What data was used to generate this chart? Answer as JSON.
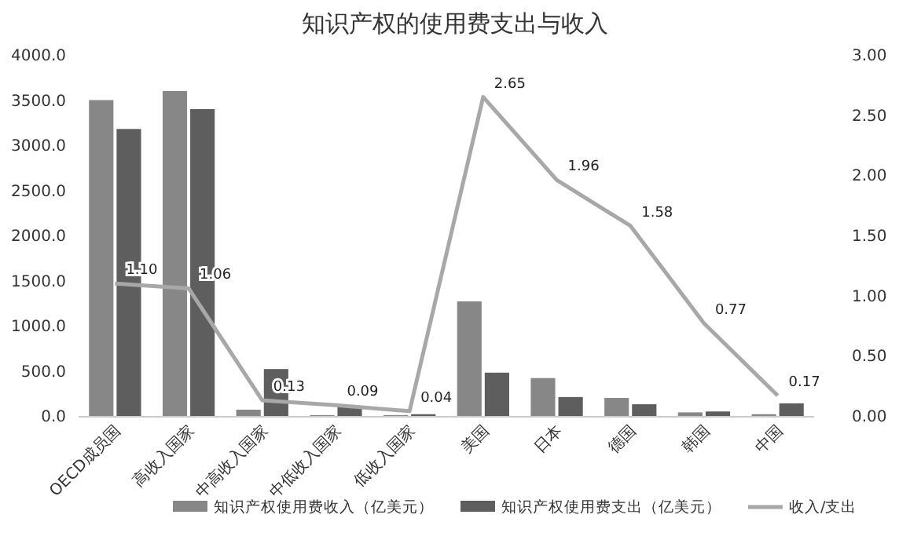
{
  "chart_data": {
    "type": "bar",
    "title": "知识产权的使用费支出与收入",
    "categories": [
      "OECD成员国",
      "高收入国家",
      "中高收入国家",
      "中低收入国家",
      "低收入国家",
      "美国",
      "日本",
      "德国",
      "韩国",
      "中国"
    ],
    "series": [
      {
        "name": "知识产权使用费收入（亿美元）",
        "color": "#878787",
        "values": [
          3500,
          3600,
          70,
          10,
          10,
          1270,
          420,
          200,
          40,
          20
        ]
      },
      {
        "name": "知识产权使用费支出（亿美元）",
        "color": "#5e5e5e",
        "values": [
          3180,
          3400,
          520,
          110,
          20,
          480,
          210,
          130,
          50,
          140
        ]
      },
      {
        "name": "收入/支出",
        "type": "line",
        "axis": "y2",
        "color": "#a8a8a8",
        "values": [
          1.1,
          1.06,
          0.13,
          0.09,
          0.04,
          2.65,
          1.96,
          1.58,
          0.77,
          0.17
        ],
        "value_labels": [
          "1.10",
          "1.06",
          "0.13",
          "0.09",
          "0.04",
          "2.65",
          "1.96",
          "1.58",
          "0.77",
          "0.17"
        ]
      }
    ],
    "ylim": [
      0,
      4000
    ],
    "yticks": [
      {
        "value": 0,
        "label": "0.0"
      },
      {
        "value": 500,
        "label": "500.0"
      },
      {
        "value": 1000,
        "label": "1000.0"
      },
      {
        "value": 1500,
        "label": "1500.0"
      },
      {
        "value": 2000,
        "label": "2000.0"
      },
      {
        "value": 2500,
        "label": "2500.0"
      },
      {
        "value": 3000,
        "label": "3000.0"
      },
      {
        "value": 3500,
        "label": "3500.0"
      },
      {
        "value": 4000,
        "label": "4000.0"
      }
    ],
    "y2lim": [
      0,
      3
    ],
    "y2ticks": [
      {
        "value": 0,
        "label": "0.00"
      },
      {
        "value": 0.5,
        "label": "0.50"
      },
      {
        "value": 1,
        "label": "1.00"
      },
      {
        "value": 1.5,
        "label": "1.50"
      },
      {
        "value": 2,
        "label": "2.00"
      },
      {
        "value": 2.5,
        "label": "2.50"
      },
      {
        "value": 3,
        "label": "3.00"
      }
    ],
    "grid": false,
    "legend": "bottom",
    "marker": "none",
    "line_style": "solid"
  }
}
